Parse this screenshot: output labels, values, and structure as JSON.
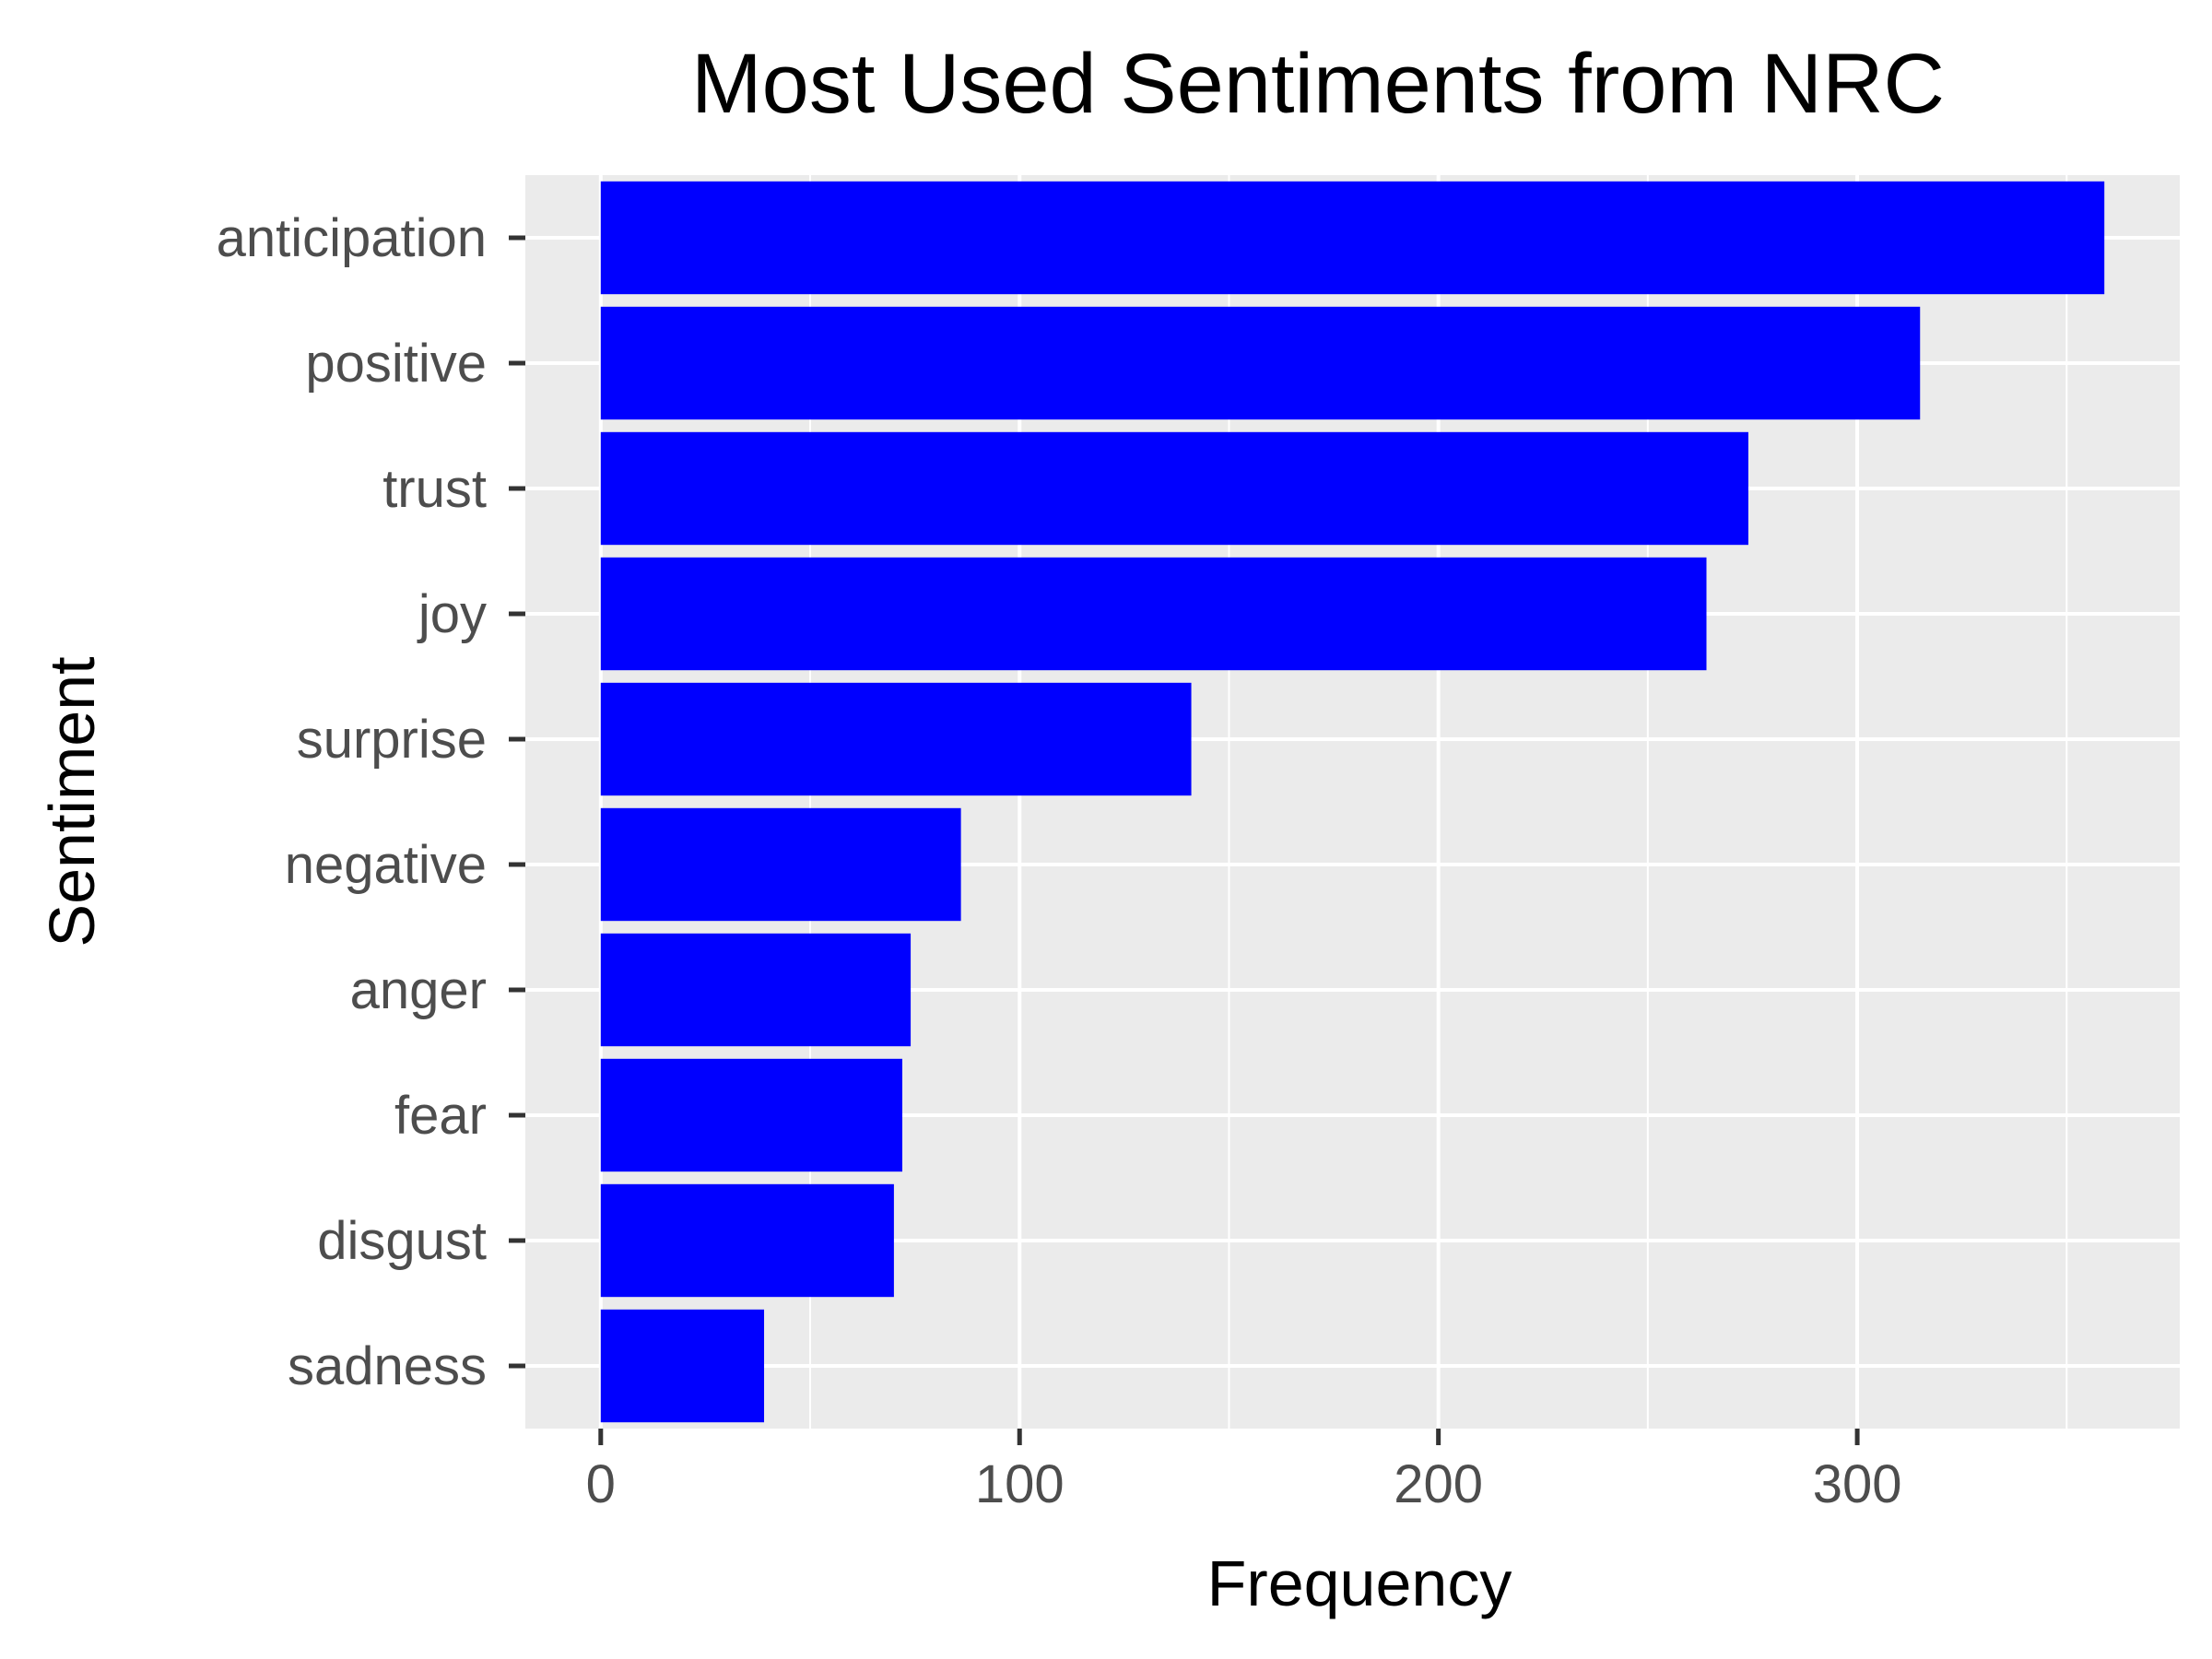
{
  "chart_data": {
    "type": "bar",
    "orientation": "horizontal",
    "title": "Most Used Sentiments from NRC",
    "xlabel": "Frequency",
    "ylabel": "Sentiment",
    "categories": [
      "anticipation",
      "positive",
      "trust",
      "joy",
      "surprise",
      "negative",
      "anger",
      "fear",
      "disgust",
      "sadness"
    ],
    "values": [
      359,
      315,
      274,
      264,
      141,
      86,
      74,
      72,
      70,
      39
    ],
    "x_ticks": [
      0,
      100,
      200,
      300
    ],
    "xlim": [
      -18,
      377
    ],
    "grid": true,
    "legend": "none",
    "bar_color": "#0000ff",
    "panel_background": "#ebebeb",
    "grid_color": "#ffffff",
    "tick_label_color": "#4d4d4d"
  }
}
